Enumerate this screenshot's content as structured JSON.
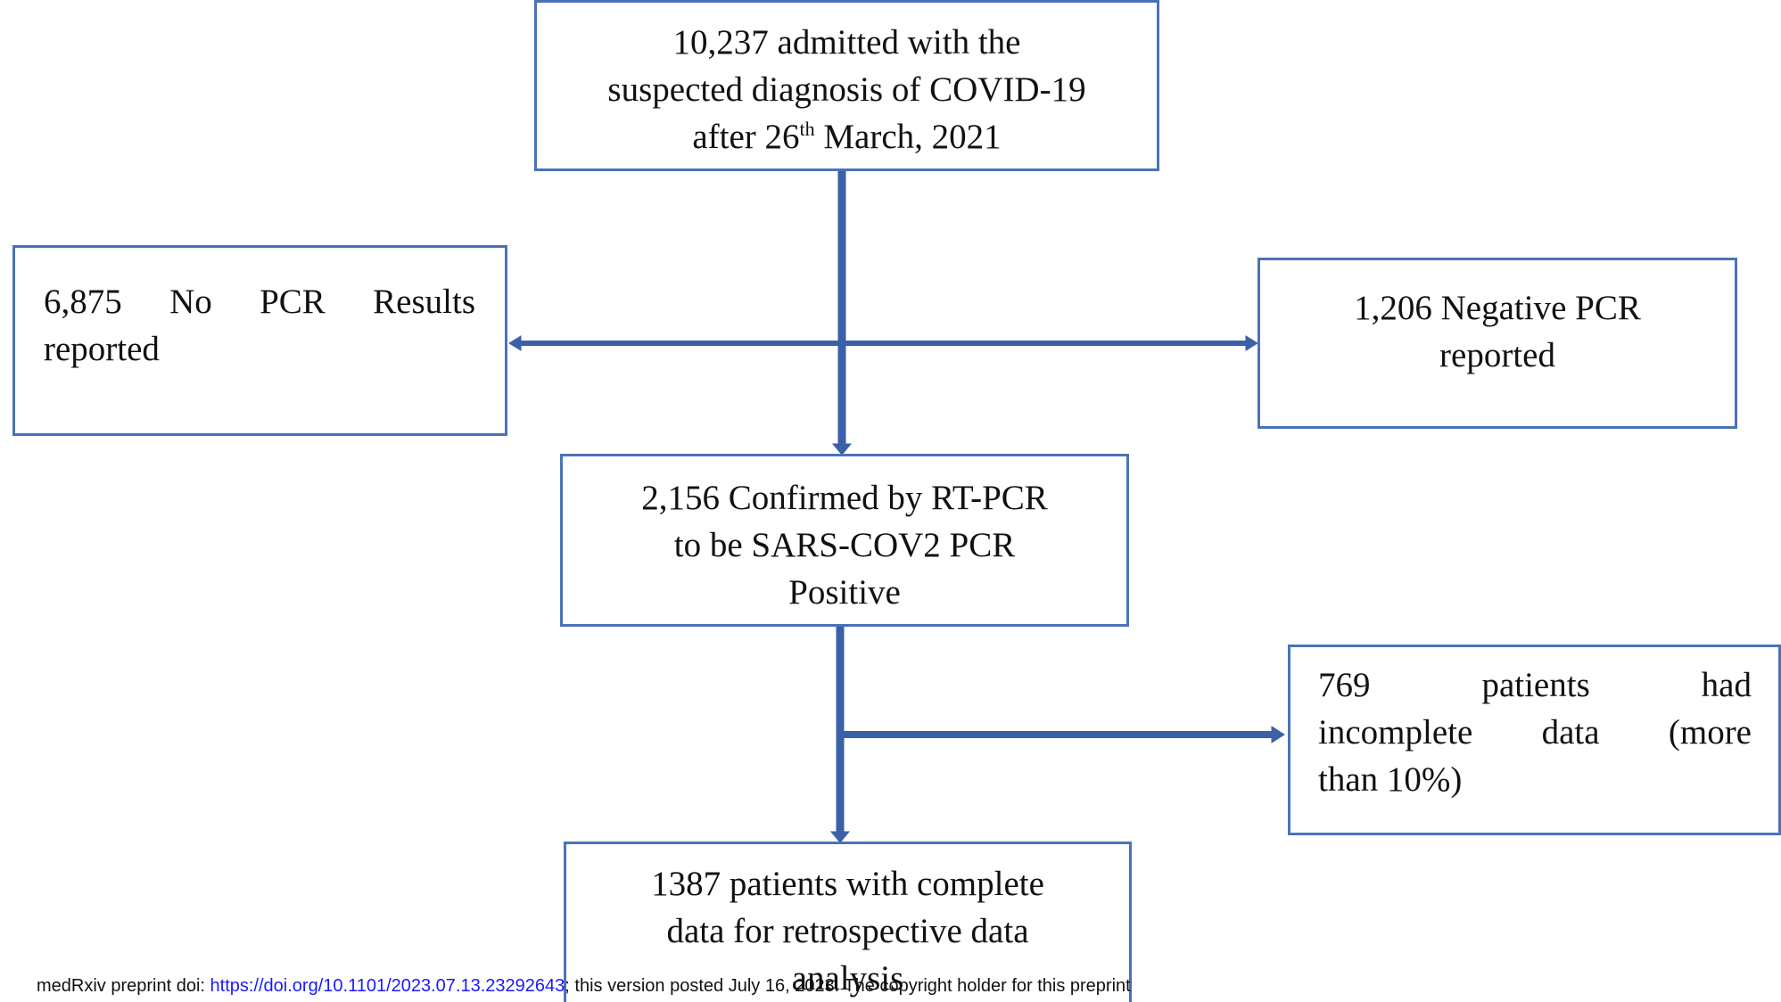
{
  "nodes": [
    {
      "lines": [
        "10,237 admitted with the",
        "suspected diagnosis of COVID-19"
      ],
      "last_line": {
        "before": "after 26",
        "sup": "th",
        "after": "March, 2021"
      }
    },
    {
      "lines": [
        "6,875 No PCR Results",
        "reported"
      ]
    },
    {
      "lines": [
        "1,206 Negative PCR",
        "reported"
      ]
    },
    {
      "lines": [
        "2,156 Confirmed by RT-PCR",
        "to be SARS-COV2 PCR",
        "Positive"
      ]
    },
    {
      "lines": [
        "769 patients had",
        "incomplete data (more",
        "than 10%)"
      ]
    },
    {
      "lines": [
        "1387 patients with complete",
        "data for retrospective data",
        "analysis"
      ]
    }
  ],
  "footer": {
    "prefix": "medRxiv preprint doi:",
    "link": "https://doi.org/10.1101/2023.07.13.23292643",
    "suffix": "; this version posted July 16, 2023. The copyright holder for this preprint"
  }
}
